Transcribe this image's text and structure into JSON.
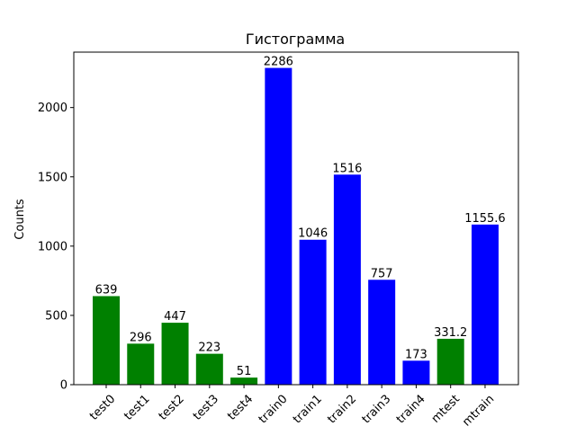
{
  "chart_data": {
    "type": "bar",
    "title": "Гистограмма",
    "xlabel": "",
    "ylabel": "Counts",
    "categories": [
      "test0",
      "test1",
      "test2",
      "test3",
      "test4",
      "train0",
      "train1",
      "train2",
      "train3",
      "train4",
      "mtest",
      "mtrain"
    ],
    "values": [
      639,
      296,
      447,
      223,
      51,
      2286,
      1046,
      1516,
      757,
      173,
      331.2,
      1155.6
    ],
    "value_labels": [
      "639",
      "296",
      "447",
      "223",
      "51",
      "2286",
      "1046",
      "1516",
      "757",
      "173",
      "331.2",
      "1155.6"
    ],
    "bar_colors": [
      "#008000",
      "#008000",
      "#008000",
      "#008000",
      "#008000",
      "#0000ff",
      "#0000ff",
      "#0000ff",
      "#0000ff",
      "#0000ff",
      "#008000",
      "#0000ff"
    ],
    "ylim": [
      0,
      2400
    ],
    "yticks": [
      0,
      500,
      1000,
      1500,
      2000
    ],
    "ytick_labels": [
      "0",
      "500",
      "1000",
      "1500",
      "2000"
    ],
    "xtick_rotation": 45,
    "grid": false,
    "legend": "none"
  }
}
